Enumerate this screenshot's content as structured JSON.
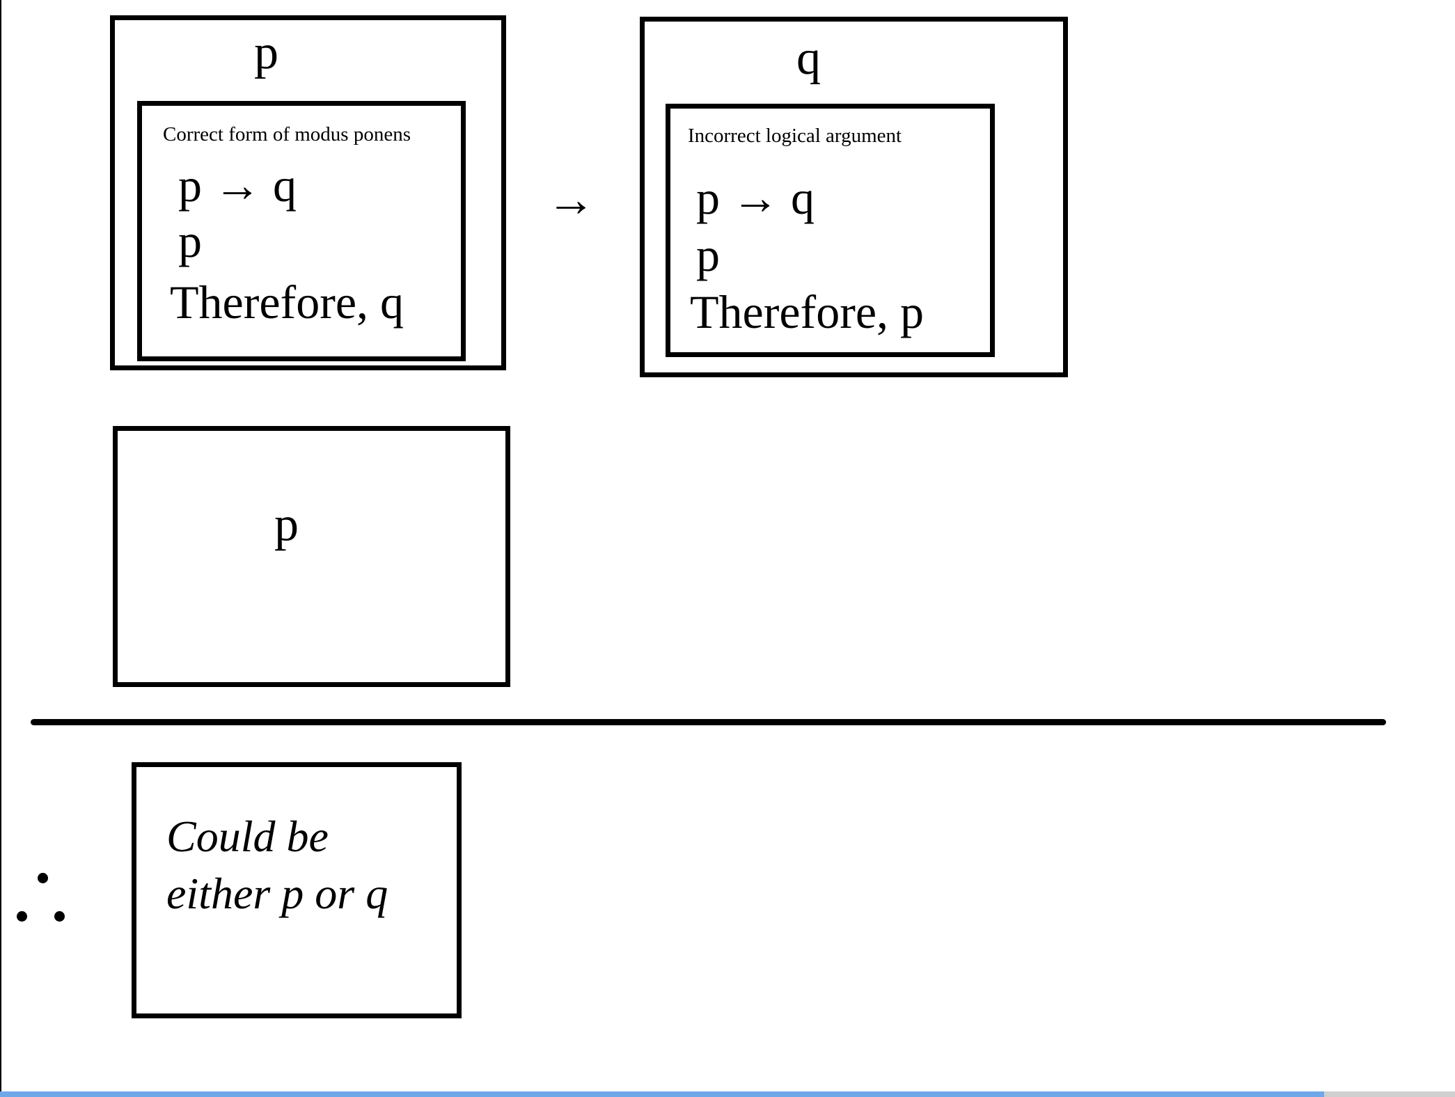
{
  "outer_box_1": {
    "title": "p",
    "inner": {
      "caption": "Correct form of modus ponens",
      "line1": "p → q",
      "line2": "p",
      "line3": "Therefore, q"
    }
  },
  "connector_arrow": "→",
  "outer_box_2": {
    "title": "q",
    "inner": {
      "caption": "Incorrect logical argument",
      "line1": "p → q",
      "line2": "p",
      "line3": "Therefore, p"
    }
  },
  "premise_box": {
    "title": "p"
  },
  "conclusion_box": {
    "line1": "Could be",
    "line2": "either p or q"
  },
  "progress": {
    "fraction": 0.91,
    "fill_color": "#6fa8e8",
    "track_color": "#cfcfcf"
  }
}
